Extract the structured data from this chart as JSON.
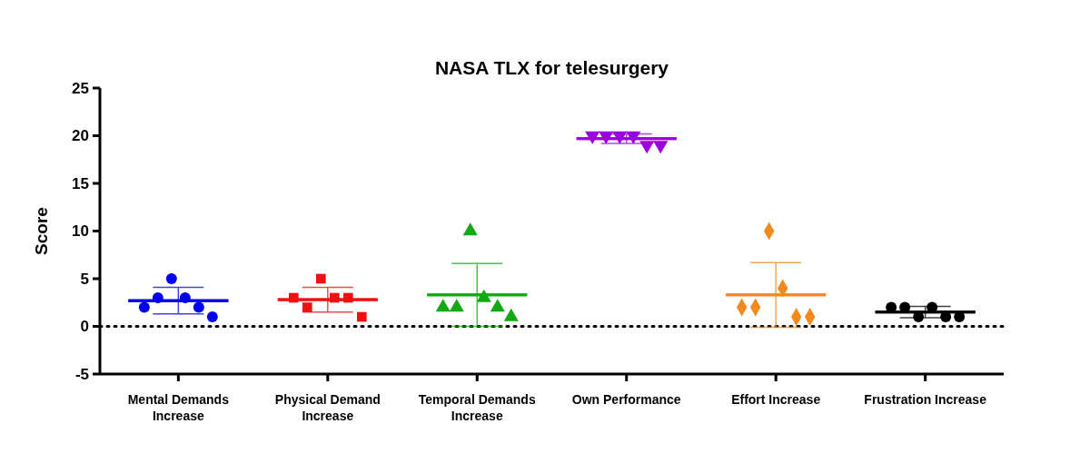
{
  "chart_data": {
    "type": "scatter",
    "title": "NASA TLX for telesurgery",
    "ylabel": "Score",
    "categories": [
      "Mental Demands Increase",
      "Physical Demand Increase",
      "Temporal Demands Increase",
      "Own Performance",
      "Effort Increase",
      "Frustration Increase"
    ],
    "ylim": [
      -5,
      25
    ],
    "yticks": [
      -5,
      0,
      5,
      10,
      15,
      20,
      25
    ],
    "grid": false,
    "series": [
      {
        "color": "#0000ee",
        "marker": "circle",
        "x": [
          "Mental Demands Increase",
          "Mental Demands Increase",
          "Mental Demands Increase",
          "Mental Demands Increase",
          "Mental Demands Increase",
          "Mental Demands Increase"
        ],
        "values": [
          2,
          3,
          5,
          3,
          2,
          1
        ]
      },
      {
        "color": "#ee1111",
        "marker": "square",
        "x": [
          "Physical Demand Increase",
          "Physical Demand Increase",
          "Physical Demand Increase",
          "Physical Demand Increase",
          "Physical Demand Increase",
          "Physical Demand Increase"
        ],
        "values": [
          3,
          2,
          5,
          3,
          3,
          1
        ]
      },
      {
        "color": "#11aa11",
        "marker": "triangle",
        "x": [
          "Temporal Demands Increase",
          "Temporal Demands Increase",
          "Temporal Demands Increase",
          "Temporal Demands Increase",
          "Temporal Demands Increase",
          "Temporal Demands Increase"
        ],
        "values": [
          2,
          2,
          10,
          3,
          2,
          1
        ]
      },
      {
        "color": "#9900dd",
        "marker": "triangle-down",
        "x": [
          "Own Performance",
          "Own Performance",
          "Own Performance",
          "Own Performance",
          "Own Performance",
          "Own Performance"
        ],
        "values": [
          20,
          20,
          20,
          20,
          19,
          19
        ]
      },
      {
        "color": "#f08a1c",
        "marker": "diamond",
        "x": [
          "Effort Increase",
          "Effort Increase",
          "Effort Increase",
          "Effort Increase",
          "Effort Increase",
          "Effort Increase"
        ],
        "values": [
          2,
          2,
          10,
          4,
          1,
          1
        ]
      },
      {
        "color": "#000000",
        "marker": "circle",
        "x": [
          "Frustration Increase",
          "Frustration Increase",
          "Frustration Increase",
          "Frustration Increase",
          "Frustration Increase",
          "Frustration Increase"
        ],
        "values": [
          2,
          2,
          1,
          2,
          1,
          1
        ]
      },
      {
        "type": "box",
        "colors": [
          "#0000ee",
          "#ee1111",
          "#11aa11",
          "#9900dd",
          "#f08a1c",
          "#000000"
        ],
        "boxes": [
          {
            "low": 1.3,
            "q1": 2.7,
            "median": 2.7,
            "q3": 2.7,
            "high": 4.1
          },
          {
            "low": 1.5,
            "q1": 2.8,
            "median": 2.8,
            "q3": 2.8,
            "high": 4.1
          },
          {
            "low": 0,
            "q1": 3.3,
            "median": 3.3,
            "q3": 3.3,
            "high": 6.6
          },
          {
            "low": 19.2,
            "q1": 19.7,
            "median": 19.7,
            "q3": 19.7,
            "high": 20.2
          },
          {
            "low": -0.1,
            "q1": 3.3,
            "median": 3.3,
            "q3": 3.3,
            "high": 6.7
          },
          {
            "low": 0.9,
            "q1": 1.5,
            "median": 1.5,
            "q3": 1.5,
            "high": 2.1
          }
        ]
      }
    ],
    "ref_lines": [
      {
        "axis": "y",
        "value": 0,
        "line_style": "dotted",
        "color": "#000000"
      }
    ]
  }
}
